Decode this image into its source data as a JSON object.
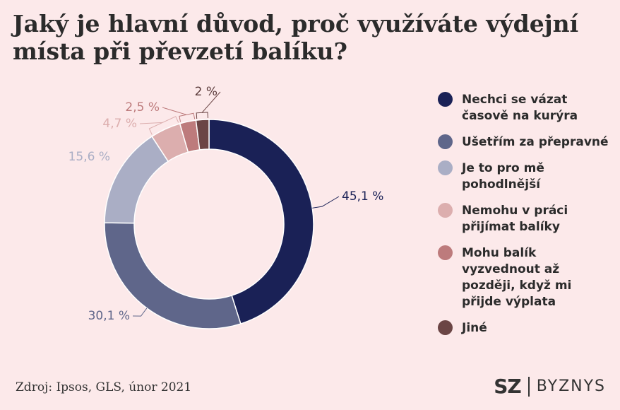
{
  "title": "Jaký je hlavní důvod, proč využíváte výdejní místa při převzetí balíku?",
  "source": "Zdroj: Ipsos, GLS, únor 2021",
  "brand": {
    "mark": "SZ",
    "name": "BYZNYS"
  },
  "colors": {
    "background": "#fce9ea",
    "slices": [
      "#1a2156",
      "#5f668a",
      "#aaaec5",
      "#dcaeae",
      "#bd7b7c",
      "#6b4545"
    ]
  },
  "chart_data": {
    "type": "pie",
    "donut": true,
    "title": "Jaký je hlavní důvod, proč využíváte výdejní místa při převzetí balíku?",
    "legend_position": "right",
    "categories": [
      "Nechci se vázat časově na kurýra",
      "Ušetřím za přepravné",
      "Je to pro mě pohodlnější",
      "Nemohu v práci přijímat balíky",
      "Mohu balík vyzvednout až později, když mi přijde výplata",
      "Jiné"
    ],
    "values": [
      45.1,
      30.1,
      15.6,
      4.7,
      2.5,
      2
    ],
    "labels": [
      "45,1 %",
      "30,1 %",
      "15,6 %",
      "4,7 %",
      "2,5 %",
      "2 %"
    ]
  }
}
